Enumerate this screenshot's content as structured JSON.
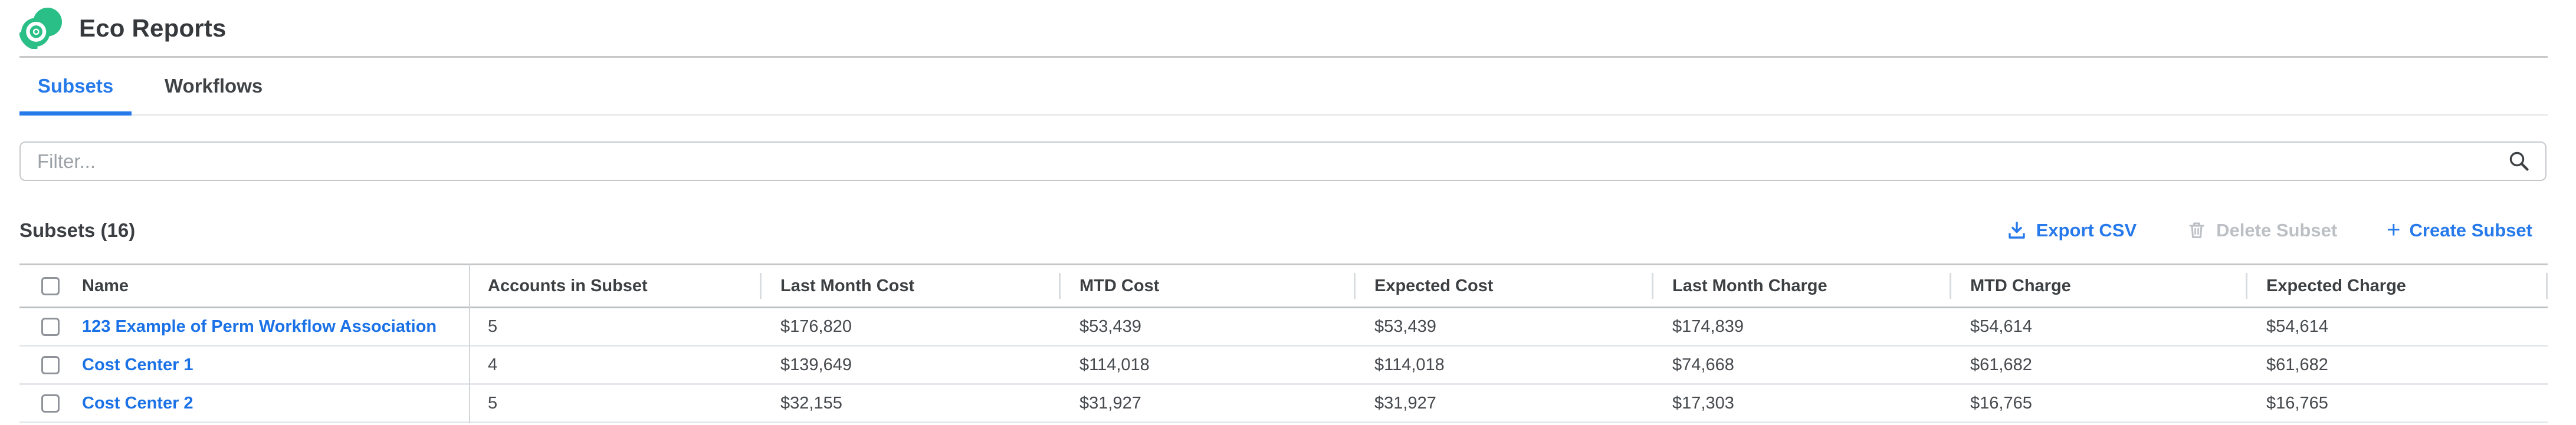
{
  "app": {
    "title": "Eco Reports"
  },
  "tabs": [
    {
      "label": "Subsets",
      "active": true
    },
    {
      "label": "Workflows",
      "active": false
    }
  ],
  "filter": {
    "placeholder": "Filter...",
    "value": "",
    "icon": "search-icon"
  },
  "section": {
    "heading": "Subsets (16)"
  },
  "actions": {
    "export_label": "Export CSV",
    "export_icon": "download-icon",
    "delete_label": "Delete Subset",
    "delete_icon": "trash-icon",
    "delete_disabled": true,
    "create_label": "Create Subset",
    "create_icon": "plus-icon",
    "create_prefix": "+"
  },
  "table": {
    "columns": [
      "Name",
      "Accounts in Subset",
      "Last Month Cost",
      "MTD Cost",
      "Expected Cost",
      "Last Month Charge",
      "MTD Charge",
      "Expected Charge"
    ],
    "row_keys": [
      "name",
      "accounts",
      "last_month_cost",
      "mtd_cost",
      "expected_cost",
      "last_month_charge",
      "mtd_charge",
      "expected_charge"
    ],
    "rows": [
      {
        "name": "123 Example of Perm Workflow Association",
        "accounts": "5",
        "last_month_cost": "$176,820",
        "mtd_cost": "$53,439",
        "expected_cost": "$53,439",
        "last_month_charge": "$174,839",
        "mtd_charge": "$54,614",
        "expected_charge": "$54,614"
      },
      {
        "name": "Cost Center 1",
        "accounts": "4",
        "last_month_cost": "$139,649",
        "mtd_cost": "$114,018",
        "expected_cost": "$114,018",
        "last_month_charge": "$74,668",
        "mtd_charge": "$61,682",
        "expected_charge": "$61,682"
      },
      {
        "name": "Cost Center 2",
        "accounts": "5",
        "last_month_cost": "$32,155",
        "mtd_cost": "$31,927",
        "expected_cost": "$31,927",
        "last_month_charge": "$17,303",
        "mtd_charge": "$16,765",
        "expected_charge": "$16,765"
      }
    ]
  },
  "colors": {
    "accent_blue": "#2579ea",
    "link_blue": "#1b72e6",
    "brand_green": "#2abf87",
    "disabled_gray": "#bcc0c4",
    "text_dark": "#3d4043"
  }
}
